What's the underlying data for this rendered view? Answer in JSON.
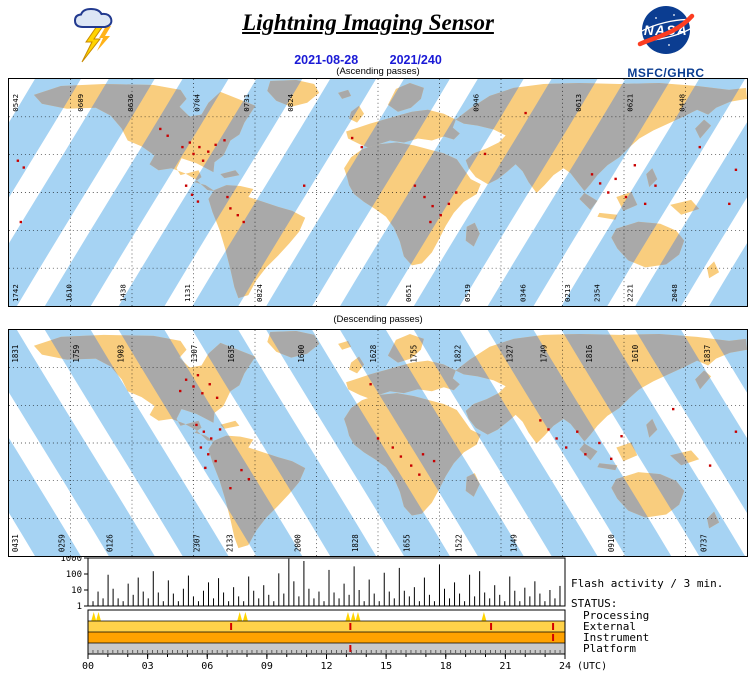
{
  "header": {
    "title": "Lightning Imaging Sensor",
    "date": "2021-08-28",
    "doy": "2021/240",
    "nasa_wordmark": "NASA",
    "org": "MSFC/GHRC"
  },
  "style": {
    "swath_ocean": "#A6D3F3",
    "swath_land": "#A9A9A9",
    "land": "#F9CD7E",
    "flash_red": "#C80000",
    "date_blue": "#1A1AD6",
    "nasa_blue": "#0B3D91",
    "nasa_red": "#FC3D21"
  },
  "maps": {
    "ascending": {
      "label": "(Ascending passes)",
      "orbit_times_top": [
        [
          0.012,
          "0542"
        ],
        [
          0.1,
          "0609"
        ],
        [
          0.168,
          "0636"
        ],
        [
          0.258,
          "0704"
        ],
        [
          0.325,
          "0731"
        ],
        [
          0.385,
          "0824"
        ],
        [
          0.636,
          "0946"
        ],
        [
          0.775,
          "0613"
        ],
        [
          0.845,
          "0621"
        ],
        [
          0.915,
          "0448"
        ]
      ],
      "orbit_times_bottom": [
        [
          0.012,
          "1742"
        ],
        [
          0.085,
          "1610"
        ],
        [
          0.158,
          "1438"
        ],
        [
          0.245,
          "1131"
        ],
        [
          0.343,
          "0824"
        ],
        [
          0.545,
          "0651"
        ],
        [
          0.625,
          "0519"
        ],
        [
          0.7,
          "0346"
        ],
        [
          0.76,
          "0213"
        ],
        [
          0.8,
          "2354"
        ],
        [
          0.845,
          "2221"
        ],
        [
          0.905,
          "2048"
        ]
      ],
      "flash_points": [
        [
          0.012,
          0.36
        ],
        [
          0.02,
          0.39
        ],
        [
          0.016,
          0.63
        ],
        [
          0.205,
          0.22
        ],
        [
          0.215,
          0.25
        ],
        [
          0.235,
          0.3
        ],
        [
          0.245,
          0.28
        ],
        [
          0.25,
          0.33
        ],
        [
          0.258,
          0.3
        ],
        [
          0.263,
          0.36
        ],
        [
          0.27,
          0.32
        ],
        [
          0.28,
          0.29
        ],
        [
          0.292,
          0.27
        ],
        [
          0.24,
          0.47
        ],
        [
          0.248,
          0.51
        ],
        [
          0.256,
          0.54
        ],
        [
          0.3,
          0.57
        ],
        [
          0.31,
          0.6
        ],
        [
          0.318,
          0.63
        ],
        [
          0.296,
          0.52
        ],
        [
          0.4,
          0.47
        ],
        [
          0.465,
          0.26
        ],
        [
          0.478,
          0.3
        ],
        [
          0.55,
          0.47
        ],
        [
          0.563,
          0.52
        ],
        [
          0.574,
          0.56
        ],
        [
          0.585,
          0.6
        ],
        [
          0.596,
          0.55
        ],
        [
          0.571,
          0.63
        ],
        [
          0.606,
          0.5
        ],
        [
          0.645,
          0.33
        ],
        [
          0.7,
          0.15
        ],
        [
          0.79,
          0.42
        ],
        [
          0.801,
          0.46
        ],
        [
          0.812,
          0.5
        ],
        [
          0.822,
          0.44
        ],
        [
          0.836,
          0.52
        ],
        [
          0.848,
          0.38
        ],
        [
          0.862,
          0.55
        ],
        [
          0.876,
          0.47
        ],
        [
          0.936,
          0.3
        ],
        [
          0.985,
          0.4
        ],
        [
          0.976,
          0.55
        ]
      ]
    },
    "descending": {
      "label": "(Descending passes)",
      "orbit_times_top": [
        [
          0.012,
          "1831"
        ],
        [
          0.095,
          "1759"
        ],
        [
          0.155,
          "1903"
        ],
        [
          0.255,
          "1307"
        ],
        [
          0.305,
          "1635"
        ],
        [
          0.4,
          "1600"
        ],
        [
          0.497,
          "1628"
        ],
        [
          0.552,
          "1755"
        ],
        [
          0.612,
          "1822"
        ],
        [
          0.682,
          "1327"
        ],
        [
          0.728,
          "1749"
        ],
        [
          0.79,
          "1816"
        ],
        [
          0.852,
          "1610"
        ],
        [
          0.95,
          "1837"
        ]
      ],
      "orbit_times_bottom": [
        [
          0.012,
          "0431"
        ],
        [
          0.075,
          "0259"
        ],
        [
          0.14,
          "0126"
        ],
        [
          0.258,
          "2307"
        ],
        [
          0.303,
          "2133"
        ],
        [
          0.395,
          "2000"
        ],
        [
          0.473,
          "1828"
        ],
        [
          0.543,
          "1655"
        ],
        [
          0.613,
          "1522"
        ],
        [
          0.688,
          "1349"
        ],
        [
          0.82,
          "0910"
        ],
        [
          0.945,
          "0737"
        ]
      ],
      "flash_points": [
        [
          0.232,
          0.27
        ],
        [
          0.24,
          0.22
        ],
        [
          0.25,
          0.25
        ],
        [
          0.256,
          0.2
        ],
        [
          0.262,
          0.28
        ],
        [
          0.272,
          0.24
        ],
        [
          0.282,
          0.3
        ],
        [
          0.254,
          0.42
        ],
        [
          0.264,
          0.45
        ],
        [
          0.274,
          0.48
        ],
        [
          0.286,
          0.44
        ],
        [
          0.26,
          0.52
        ],
        [
          0.27,
          0.55
        ],
        [
          0.28,
          0.58
        ],
        [
          0.266,
          0.61
        ],
        [
          0.315,
          0.62
        ],
        [
          0.325,
          0.66
        ],
        [
          0.3,
          0.7
        ],
        [
          0.49,
          0.24
        ],
        [
          0.5,
          0.48
        ],
        [
          0.52,
          0.52
        ],
        [
          0.531,
          0.56
        ],
        [
          0.545,
          0.6
        ],
        [
          0.556,
          0.64
        ],
        [
          0.561,
          0.55
        ],
        [
          0.576,
          0.58
        ],
        [
          0.72,
          0.4
        ],
        [
          0.731,
          0.44
        ],
        [
          0.742,
          0.48
        ],
        [
          0.755,
          0.52
        ],
        [
          0.77,
          0.45
        ],
        [
          0.781,
          0.55
        ],
        [
          0.8,
          0.5
        ],
        [
          0.816,
          0.57
        ],
        [
          0.83,
          0.47
        ],
        [
          0.9,
          0.35
        ],
        [
          0.95,
          0.6
        ],
        [
          0.985,
          0.45
        ]
      ]
    }
  },
  "activity": {
    "right_label": "Flash activity / 3 min.",
    "status_label": "STATUS:",
    "rows": [
      {
        "label": "Processing",
        "color": "#FFFFFF",
        "mark_style": "spike",
        "mark_color": "#FFD400",
        "marks": [
          0.012,
          0.022,
          0.318,
          0.33,
          0.545,
          0.556,
          0.566,
          0.83
        ]
      },
      {
        "label": "External",
        "color": "#FFD24A",
        "mark_style": "tick",
        "mark_color": "#D40000",
        "marks": [
          0.3,
          0.55,
          0.845,
          0.975
        ]
      },
      {
        "label": "Instrument",
        "color": "#FFA200",
        "mark_style": "tick",
        "mark_color": "#D40000",
        "marks": [
          0.975
        ]
      },
      {
        "label": "Platform",
        "color": "#C9C9C9",
        "mark_style": "tick",
        "mark_color": "#D40000",
        "marks": [
          0.55
        ],
        "ticks": true
      }
    ],
    "x_ticks": [
      "00",
      "03",
      "06",
      "09",
      "12",
      "15",
      "18",
      "21",
      "24"
    ],
    "x_unit": "(UTC)"
  },
  "chart_data": {
    "type": "bar",
    "title": "Flash activity / 3 min.",
    "xlabel": "(UTC)",
    "x_range_hours_utc": [
      0,
      24
    ],
    "x_tick_labels": [
      "00",
      "03",
      "06",
      "09",
      "12",
      "15",
      "18",
      "21",
      "24"
    ],
    "y_scale": "log",
    "y_ticks": [
      1,
      10,
      100,
      1000
    ],
    "ylim": [
      1,
      1000
    ],
    "values": [
      4,
      2,
      8,
      3,
      90,
      12,
      3,
      2,
      25,
      5,
      60,
      8,
      3,
      150,
      7,
      2,
      40,
      6,
      2,
      12,
      80,
      4,
      2,
      9,
      30,
      3,
      55,
      7,
      2,
      15,
      4,
      2,
      70,
      9,
      3,
      20,
      5,
      2,
      110,
      6,
      900,
      35,
      4,
      650,
      12,
      3,
      8,
      2,
      180,
      7,
      3,
      25,
      5,
      300,
      10,
      2,
      45,
      6,
      2,
      120,
      8,
      3,
      240,
      9,
      4,
      15,
      2,
      60,
      5,
      2,
      400,
      12,
      3,
      30,
      6,
      2,
      90,
      4,
      150,
      7,
      3,
      20,
      5,
      2,
      70,
      9,
      2,
      14,
      4,
      35,
      6,
      2,
      10,
      3,
      18,
      5
    ]
  }
}
